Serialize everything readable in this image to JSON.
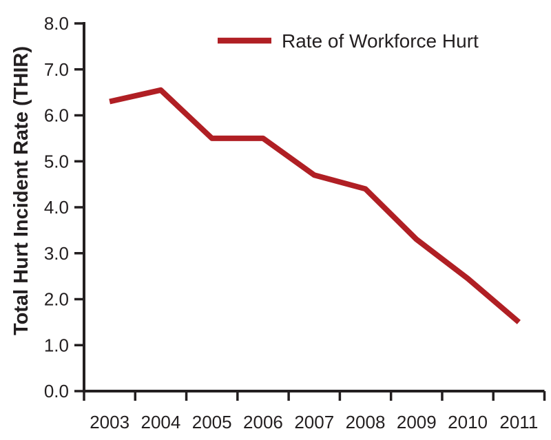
{
  "chart_data": {
    "type": "line",
    "title": "",
    "categories": [
      "2003",
      "2004",
      "2005",
      "2006",
      "2007",
      "2008",
      "2009",
      "2010",
      "2011"
    ],
    "series": [
      {
        "name": "Rate of Workforce Hurt",
        "values": [
          6.3,
          6.55,
          5.5,
          5.5,
          4.7,
          4.4,
          3.3,
          2.45,
          1.5
        ]
      }
    ],
    "xlabel": "",
    "ylabel": "Total Hurt Incident Rate (THIR)",
    "ylim": [
      0.0,
      8.0
    ],
    "ytick_labels": [
      "0.0",
      "1.0",
      "2.0",
      "3.0",
      "4.0",
      "5.0",
      "6.0",
      "7.0",
      "8.0"
    ],
    "grid": false,
    "legend": {
      "position": "top-center",
      "entries": [
        "Rate of Workforce Hurt"
      ]
    },
    "colors": {
      "line": "#b01f24",
      "text": "#231f20",
      "axis": "#231f20",
      "background": "#ffffff"
    }
  }
}
